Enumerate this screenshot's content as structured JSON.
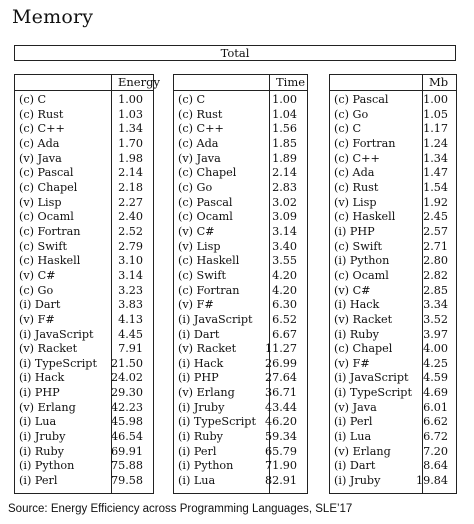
{
  "title": "Memory",
  "total_label": "Total",
  "source": "Source: Energy Efficiency across Programming Languages, SLE’17",
  "tables": [
    {
      "header": "Energy",
      "rows": [
        {
          "lang": "(c) C",
          "value": "1.00"
        },
        {
          "lang": "(c) Rust",
          "value": "1.03"
        },
        {
          "lang": "(c) C++",
          "value": "1.34"
        },
        {
          "lang": "(c) Ada",
          "value": "1.70"
        },
        {
          "lang": "(v) Java",
          "value": "1.98"
        },
        {
          "lang": "(c) Pascal",
          "value": "2.14"
        },
        {
          "lang": "(c) Chapel",
          "value": "2.18"
        },
        {
          "lang": "(v) Lisp",
          "value": "2.27"
        },
        {
          "lang": "(c) Ocaml",
          "value": "2.40"
        },
        {
          "lang": "(c) Fortran",
          "value": "2.52"
        },
        {
          "lang": "(c) Swift",
          "value": "2.79"
        },
        {
          "lang": "(c) Haskell",
          "value": "3.10"
        },
        {
          "lang": "(v) C#",
          "value": "3.14"
        },
        {
          "lang": "(c) Go",
          "value": "3.23"
        },
        {
          "lang": "(i) Dart",
          "value": "3.83"
        },
        {
          "lang": "(v) F#",
          "value": "4.13"
        },
        {
          "lang": "(i) JavaScript",
          "value": "4.45"
        },
        {
          "lang": "(v) Racket",
          "value": "7.91"
        },
        {
          "lang": "(i) TypeScript",
          "value": "21.50"
        },
        {
          "lang": "(i) Hack",
          "value": "24.02"
        },
        {
          "lang": "(i) PHP",
          "value": "29.30"
        },
        {
          "lang": "(v) Erlang",
          "value": "42.23"
        },
        {
          "lang": "(i) Lua",
          "value": "45.98"
        },
        {
          "lang": "(i) Jruby",
          "value": "46.54"
        },
        {
          "lang": "(i) Ruby",
          "value": "69.91"
        },
        {
          "lang": "(i) Python",
          "value": "75.88"
        },
        {
          "lang": "(i) Perl",
          "value": "79.58"
        }
      ]
    },
    {
      "header": "Time",
      "rows": [
        {
          "lang": "(c) C",
          "value": "1.00"
        },
        {
          "lang": "(c) Rust",
          "value": "1.04"
        },
        {
          "lang": "(c) C++",
          "value": "1.56"
        },
        {
          "lang": "(c) Ada",
          "value": "1.85"
        },
        {
          "lang": "(v) Java",
          "value": "1.89"
        },
        {
          "lang": "(c) Chapel",
          "value": "2.14"
        },
        {
          "lang": "(c) Go",
          "value": "2.83"
        },
        {
          "lang": "(c) Pascal",
          "value": "3.02"
        },
        {
          "lang": "(c) Ocaml",
          "value": "3.09"
        },
        {
          "lang": "(v) C#",
          "value": "3.14"
        },
        {
          "lang": "(v) Lisp",
          "value": "3.40"
        },
        {
          "lang": "(c) Haskell",
          "value": "3.55"
        },
        {
          "lang": "(c) Swift",
          "value": "4.20"
        },
        {
          "lang": "(c) Fortran",
          "value": "4.20"
        },
        {
          "lang": "(v) F#",
          "value": "6.30"
        },
        {
          "lang": "(i) JavaScript",
          "value": "6.52"
        },
        {
          "lang": "(i) Dart",
          "value": "6.67"
        },
        {
          "lang": "(v) Racket",
          "value": "11.27"
        },
        {
          "lang": "(i) Hack",
          "value": "26.99"
        },
        {
          "lang": "(i) PHP",
          "value": "27.64"
        },
        {
          "lang": "(v) Erlang",
          "value": "36.71"
        },
        {
          "lang": "(i) Jruby",
          "value": "43.44"
        },
        {
          "lang": "(i) TypeScript",
          "value": "46.20"
        },
        {
          "lang": "(i) Ruby",
          "value": "59.34"
        },
        {
          "lang": "(i) Perl",
          "value": "65.79"
        },
        {
          "lang": "(i) Python",
          "value": "71.90"
        },
        {
          "lang": "(i) Lua",
          "value": "82.91"
        }
      ]
    },
    {
      "header": "Mb",
      "rows": [
        {
          "lang": "(c) Pascal",
          "value": "1.00"
        },
        {
          "lang": "(c) Go",
          "value": "1.05"
        },
        {
          "lang": "(c) C",
          "value": "1.17"
        },
        {
          "lang": "(c) Fortran",
          "value": "1.24"
        },
        {
          "lang": "(c) C++",
          "value": "1.34"
        },
        {
          "lang": "(c) Ada",
          "value": "1.47"
        },
        {
          "lang": "(c) Rust",
          "value": "1.54"
        },
        {
          "lang": "(v) Lisp",
          "value": "1.92"
        },
        {
          "lang": "(c) Haskell",
          "value": "2.45"
        },
        {
          "lang": "(i) PHP",
          "value": "2.57"
        },
        {
          "lang": "(c) Swift",
          "value": "2.71"
        },
        {
          "lang": "(i) Python",
          "value": "2.80"
        },
        {
          "lang": "(c) Ocaml",
          "value": "2.82"
        },
        {
          "lang": "(v) C#",
          "value": "2.85"
        },
        {
          "lang": "(i) Hack",
          "value": "3.34"
        },
        {
          "lang": "(v) Racket",
          "value": "3.52"
        },
        {
          "lang": "(i) Ruby",
          "value": "3.97"
        },
        {
          "lang": "(c) Chapel",
          "value": "4.00"
        },
        {
          "lang": "(v) F#",
          "value": "4.25"
        },
        {
          "lang": "(i) JavaScript",
          "value": "4.59"
        },
        {
          "lang": "(i) TypeScript",
          "value": "4.69"
        },
        {
          "lang": "(v) Java",
          "value": "6.01"
        },
        {
          "lang": "(i) Perl",
          "value": "6.62"
        },
        {
          "lang": "(i) Lua",
          "value": "6.72"
        },
        {
          "lang": "(v) Erlang",
          "value": "7.20"
        },
        {
          "lang": "(i) Dart",
          "value": "8.64"
        },
        {
          "lang": "(i) Jruby",
          "value": "19.84"
        }
      ]
    }
  ]
}
